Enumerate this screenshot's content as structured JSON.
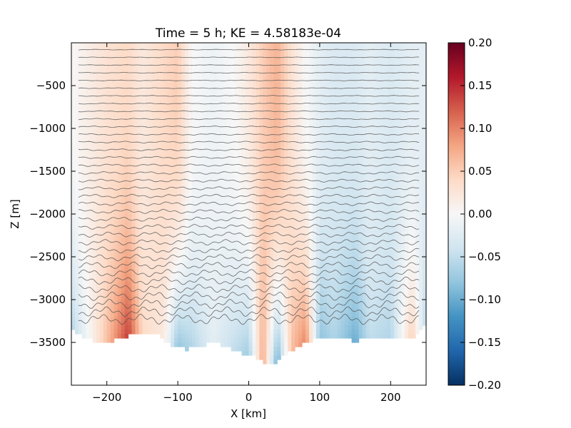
{
  "chart_data": {
    "type": "heatmap",
    "title": "Time = 5 h; KE = 4.58183e-04",
    "xlabel": "X [km]",
    "ylabel": "Z [m]",
    "xlim": [
      -250,
      250
    ],
    "ylim": [
      -4000,
      0
    ],
    "x_ticks": [
      -200,
      -100,
      0,
      100,
      200
    ],
    "x_tick_labels": [
      "−200",
      "−100",
      "0",
      "100",
      "200"
    ],
    "y_ticks": [
      -500,
      -1000,
      -1500,
      -2000,
      -2500,
      -3000,
      -3500
    ],
    "y_tick_labels": [
      "−500",
      "−1000",
      "−1500",
      "−2000",
      "−2500",
      "−3000",
      "−3500"
    ],
    "colorbar": {
      "colormap": "RdBu_r",
      "range": [
        -0.2,
        0.2
      ],
      "ticks": [
        0.2,
        0.15,
        0.1,
        0.05,
        0.0,
        -0.05,
        -0.1,
        -0.15,
        -0.2
      ],
      "tick_labels": [
        "0.20",
        "0.15",
        "0.10",
        "0.05",
        "0.00",
        "−0.05",
        "−0.10",
        "−0.15",
        "−0.20"
      ],
      "stops": [
        "#053061",
        "#2166ac",
        "#4393c3",
        "#92c5de",
        "#d1e5f0",
        "#f7f7f7",
        "#fddbc7",
        "#f4a582",
        "#d6604d",
        "#b2182b",
        "#67001f"
      ]
    },
    "contour_color": "#505050",
    "bottom_depth_profile": {
      "x": [
        -250,
        -230,
        -210,
        -190,
        -170,
        -150,
        -130,
        -110,
        -90,
        -70,
        -50,
        -30,
        -10,
        10,
        30,
        50,
        70,
        90,
        110,
        130,
        150,
        170,
        190,
        210,
        230,
        250
      ],
      "z": [
        -3350,
        -3450,
        -3500,
        -3480,
        -3420,
        -3380,
        -3400,
        -3520,
        -3580,
        -3550,
        -3500,
        -3560,
        -3620,
        -3680,
        -3780,
        -3650,
        -3550,
        -3480,
        -3420,
        -3460,
        -3480,
        -3450,
        -3460,
        -3470,
        -3450,
        -3300
      ]
    },
    "field_pattern": {
      "x": [
        -250,
        -200,
        -170,
        -150,
        -120,
        -100,
        -80,
        -50,
        -20,
        0,
        20,
        40,
        60,
        80,
        100,
        120,
        150,
        170,
        200,
        230,
        250
      ],
      "surface_value": [
        0.0,
        0.03,
        0.04,
        0.02,
        0.04,
        0.05,
        0.0,
        -0.01,
        0.0,
        0.02,
        0.05,
        0.07,
        0.03,
        0.0,
        -0.02,
        -0.03,
        -0.03,
        -0.02,
        -0.03,
        -0.02,
        -0.02
      ],
      "bottom_value": [
        -0.06,
        0.06,
        0.14,
        0.04,
        0.02,
        -0.08,
        -0.06,
        -0.02,
        -0.05,
        -0.07,
        0.08,
        -0.1,
        0.06,
        0.1,
        -0.08,
        -0.06,
        -0.1,
        -0.05,
        -0.06,
        0.05,
        -0.06
      ]
    }
  }
}
